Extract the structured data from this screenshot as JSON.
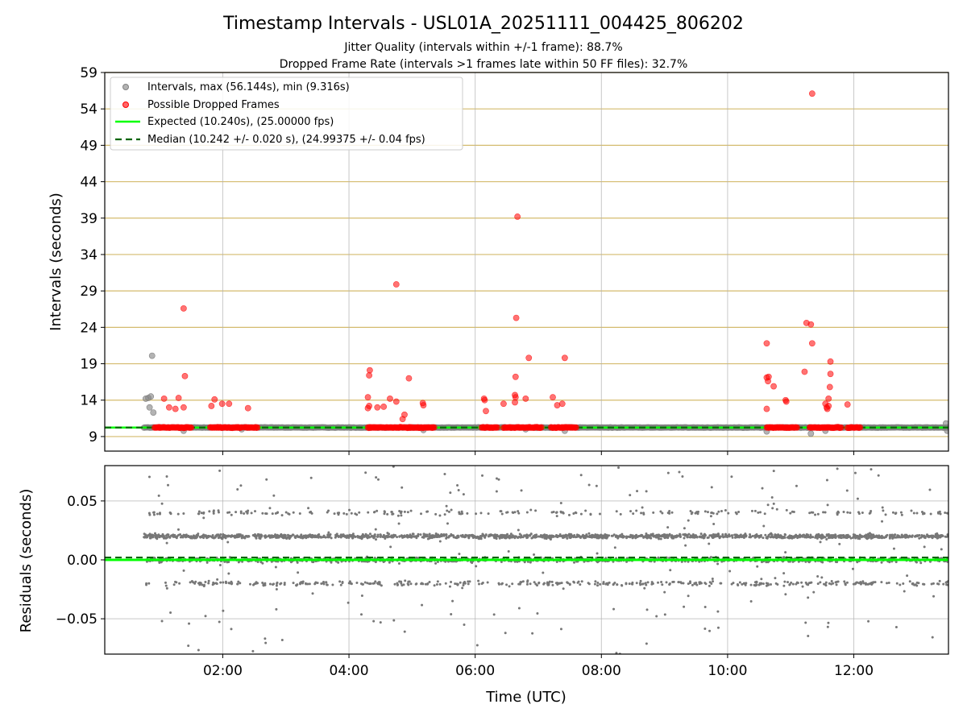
{
  "chart_data": {
    "type": "scatter",
    "title": "Timestamp Intervals - USL01A_20251111_004425_806202",
    "subtitle_lines": [
      "Jitter Quality (intervals within +/-1 frame): 88.7%",
      "Dropped Frame Rate (intervals >1 frames late within 50 FF files): 32.7%"
    ],
    "x_axis": {
      "label": "Time (UTC)",
      "unit": "hours",
      "range": [
        0.13,
        13.5
      ],
      "ticks": [
        2,
        4,
        6,
        8,
        10,
        12
      ],
      "tick_labels": [
        "02:00",
        "04:00",
        "06:00",
        "08:00",
        "10:00",
        "12:00"
      ]
    },
    "top_panel": {
      "ylabel": "Intervals (seconds)",
      "ylim": [
        7.0,
        59.0
      ],
      "yticks": [
        9,
        14,
        19,
        24,
        29,
        34,
        39,
        44,
        49,
        54,
        59
      ],
      "ytick_labels": [
        "9",
        "14",
        "19",
        "24",
        "29",
        "34",
        "39",
        "44",
        "49",
        "54",
        "59"
      ],
      "vertical_grid": true,
      "horizontal_grid_color": "#d4bb6e",
      "legend": {
        "position": "top-left",
        "entries": [
          {
            "label": "Intervals, max (56.144s), min (9.316s)",
            "kind": "marker",
            "color": "#808080"
          },
          {
            "label": "Possible Dropped Frames",
            "kind": "marker",
            "color": "#ff0000"
          },
          {
            "label": "Expected (10.240s), (25.00000 fps)",
            "kind": "line",
            "color": "#00ff00",
            "dash": "solid"
          },
          {
            "label": "Median (10.242 +/- 0.020 s), (24.99375 +/- 0.04 fps)",
            "kind": "line",
            "color": "#006400",
            "dash": "dashed"
          }
        ]
      },
      "expected_line": 10.24,
      "median_line": 10.242,
      "intervals_series": {
        "name": "Intervals",
        "color": "#808080",
        "baseline_x_range": [
          0.75,
          13.5
        ],
        "baseline_value": 10.24,
        "outliers": [
          [
            0.78,
            14.2
          ],
          [
            0.82,
            14.3
          ],
          [
            0.86,
            14.5
          ],
          [
            0.84,
            13.0
          ],
          [
            0.9,
            12.3
          ],
          [
            0.88,
            20.1
          ],
          [
            1.38,
            9.8
          ],
          [
            2.3,
            10.0
          ],
          [
            5.18,
            9.9
          ],
          [
            6.8,
            10.0
          ],
          [
            7.42,
            9.8
          ],
          [
            10.62,
            9.7
          ],
          [
            11.32,
            9.4
          ],
          [
            11.55,
            9.8
          ],
          [
            13.46,
            10.8
          ],
          [
            13.48,
            9.8
          ]
        ]
      },
      "dropped_series": {
        "name": "Possible Dropped Frames",
        "color": "#ff0000",
        "bands": [
          [
            0.92,
            1.5
          ],
          [
            1.8,
            2.3
          ],
          [
            2.35,
            2.55
          ],
          [
            4.3,
            5.35
          ],
          [
            6.1,
            6.35
          ],
          [
            6.45,
            7.05
          ],
          [
            7.2,
            7.6
          ],
          [
            10.62,
            11.1
          ],
          [
            11.3,
            11.8
          ],
          [
            11.9,
            12.1
          ]
        ],
        "band_value": 10.24,
        "points": [
          [
            1.07,
            14.2
          ],
          [
            1.15,
            13.0
          ],
          [
            1.25,
            12.8
          ],
          [
            1.3,
            14.3
          ],
          [
            1.38,
            13.0
          ],
          [
            1.4,
            17.3
          ],
          [
            1.38,
            26.6
          ],
          [
            1.82,
            13.2
          ],
          [
            1.87,
            14.1
          ],
          [
            1.99,
            13.5
          ],
          [
            2.1,
            13.5
          ],
          [
            2.4,
            12.9
          ],
          [
            4.3,
            14.4
          ],
          [
            4.3,
            12.9
          ],
          [
            4.32,
            13.2
          ],
          [
            4.33,
            18.1
          ],
          [
            4.32,
            17.4
          ],
          [
            4.45,
            13.0
          ],
          [
            4.55,
            13.1
          ],
          [
            4.65,
            14.2
          ],
          [
            4.75,
            13.8
          ],
          [
            4.75,
            29.9
          ],
          [
            4.85,
            11.4
          ],
          [
            4.88,
            12.0
          ],
          [
            4.95,
            17.0
          ],
          [
            5.17,
            13.6
          ],
          [
            5.18,
            13.3
          ],
          [
            6.14,
            14.2
          ],
          [
            6.15,
            14.0
          ],
          [
            6.17,
            12.5
          ],
          [
            6.45,
            13.5
          ],
          [
            6.63,
            13.7
          ],
          [
            6.63,
            14.7
          ],
          [
            6.64,
            14.4
          ],
          [
            6.64,
            17.2
          ],
          [
            6.65,
            25.3
          ],
          [
            6.67,
            39.2
          ],
          [
            6.8,
            14.2
          ],
          [
            6.85,
            19.8
          ],
          [
            7.23,
            14.4
          ],
          [
            7.3,
            13.3
          ],
          [
            7.38,
            13.5
          ],
          [
            7.42,
            19.8
          ],
          [
            10.62,
            12.8
          ],
          [
            10.62,
            17.1
          ],
          [
            10.62,
            21.8
          ],
          [
            10.65,
            17.2
          ],
          [
            10.64,
            16.6
          ],
          [
            10.73,
            15.9
          ],
          [
            10.92,
            14.0
          ],
          [
            10.93,
            13.8
          ],
          [
            11.22,
            17.9
          ],
          [
            11.25,
            24.6
          ],
          [
            11.32,
            24.4
          ],
          [
            11.34,
            21.8
          ],
          [
            11.34,
            56.1
          ],
          [
            11.55,
            13.5
          ],
          [
            11.57,
            13.0
          ],
          [
            11.58,
            12.8
          ],
          [
            11.6,
            14.2
          ],
          [
            11.6,
            13.2
          ],
          [
            11.62,
            15.8
          ],
          [
            11.63,
            17.6
          ],
          [
            11.63,
            19.3
          ],
          [
            11.9,
            13.4
          ]
        ]
      }
    },
    "bottom_panel": {
      "ylabel": "Residuals (seconds)",
      "ylim": [
        -0.08,
        0.08
      ],
      "yticks": [
        -0.05,
        0.0,
        0.05
      ],
      "ytick_labels": [
        "−0.05",
        "0.00",
        "0.05"
      ],
      "grid": true,
      "expected_line": 0.0,
      "median_line": 0.002,
      "residuals_series": {
        "name": "Residuals",
        "color": "#777777",
        "x_range": [
          0.75,
          13.5
        ],
        "levels": [
          0.02,
          0.0,
          -0.02,
          0.04
        ],
        "level_weights": [
          0.45,
          0.3,
          0.13,
          0.06
        ],
        "scatter_fraction": 0.06,
        "n_points": 3400
      }
    }
  }
}
